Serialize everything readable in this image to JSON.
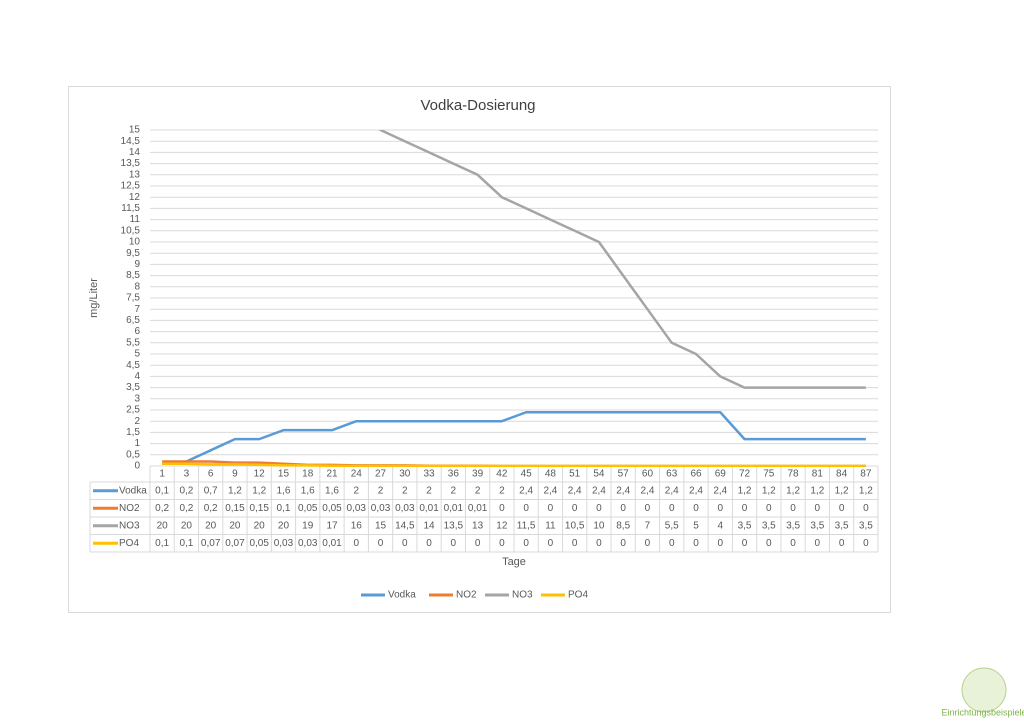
{
  "chart_data": {
    "type": "line",
    "title": "Vodka-Dosierung",
    "y_label": "mg/Liter",
    "x_label": "Tage",
    "categories": [
      "1",
      "3",
      "6",
      "9",
      "12",
      "15",
      "18",
      "21",
      "24",
      "27",
      "30",
      "33",
      "36",
      "39",
      "42",
      "45",
      "48",
      "51",
      "54",
      "57",
      "60",
      "63",
      "66",
      "69",
      "72",
      "75",
      "78",
      "81",
      "84",
      "87"
    ],
    "ylim": [
      0,
      15
    ],
    "yticks": [
      0,
      {
        "value": 0.5,
        "label": "0,5"
      },
      1,
      {
        "value": 1.5,
        "label": "1,5"
      },
      2,
      {
        "value": 2.5,
        "label": "2,5"
      },
      3,
      {
        "value": 3.5,
        "label": "3,5"
      },
      4,
      {
        "value": 4.5,
        "label": "4,5"
      },
      5,
      {
        "value": 5.5,
        "label": "5,5"
      },
      6,
      {
        "value": 6.5,
        "label": "6,5"
      },
      7,
      {
        "value": 7.5,
        "label": "7,5"
      },
      8,
      {
        "value": 8.5,
        "label": "8,5"
      },
      9,
      {
        "value": 9.5,
        "label": "9,5"
      },
      10,
      {
        "value": 10.5,
        "label": "10,5"
      },
      11,
      {
        "value": 11.5,
        "label": "11,5"
      },
      12,
      {
        "value": 12.5,
        "label": "12,5"
      },
      13,
      {
        "value": 13.5,
        "label": "13,5"
      },
      14,
      {
        "value": 14.5,
        "label": "14,5"
      },
      15
    ],
    "grid": true,
    "legend": "bottom",
    "series": [
      {
        "name": "Vodka",
        "color": "#5b9bd5",
        "values": [
          0.1,
          0.2,
          0.7,
          1.2,
          1.2,
          1.6,
          1.6,
          1.6,
          2,
          2,
          2,
          2,
          2,
          2,
          2,
          2.4,
          2.4,
          2.4,
          2.4,
          2.4,
          2.4,
          2.4,
          2.4,
          2.4,
          1.2,
          1.2,
          1.2,
          1.2,
          1.2,
          1.2
        ],
        "value_labels": [
          "0,1",
          "0,2",
          "0,7",
          "1,2",
          "1,2",
          "1,6",
          "1,6",
          "1,6",
          "2",
          "2",
          "2",
          "2",
          "2",
          "2",
          "2",
          "2,4",
          "2,4",
          "2,4",
          "2,4",
          "2,4",
          "2,4",
          "2,4",
          "2,4",
          "2,4",
          "1,2",
          "1,2",
          "1,2",
          "1,2",
          "1,2",
          "1,2"
        ]
      },
      {
        "name": "NO2",
        "color": "#ed7d31",
        "values": [
          0.2,
          0.2,
          0.2,
          0.15,
          0.15,
          0.1,
          0.05,
          0.05,
          0.03,
          0.03,
          0.03,
          0.01,
          0.01,
          0.01,
          0,
          0,
          0,
          0,
          0,
          0,
          0,
          0,
          0,
          0,
          0,
          0,
          0,
          0,
          0,
          0
        ],
        "value_labels": [
          "0,2",
          "0,2",
          "0,2",
          "0,15",
          "0,15",
          "0,1",
          "0,05",
          "0,05",
          "0,03",
          "0,03",
          "0,03",
          "0,01",
          "0,01",
          "0,01",
          "0",
          "0",
          "0",
          "0",
          "0",
          "0",
          "0",
          "0",
          "0",
          "0",
          "0",
          "0",
          "0",
          "0",
          "0",
          "0"
        ]
      },
      {
        "name": "NO3",
        "color": "#a5a5a5",
        "values": [
          20,
          20,
          20,
          20,
          20,
          20,
          19,
          17,
          16,
          15,
          14.5,
          14,
          13.5,
          13,
          12,
          11.5,
          11,
          10.5,
          10,
          8.5,
          7,
          5.5,
          5,
          4,
          3.5,
          3.5,
          3.5,
          3.5,
          3.5,
          3.5
        ],
        "value_labels": [
          "20",
          "20",
          "20",
          "20",
          "20",
          "20",
          "19",
          "17",
          "16",
          "15",
          "14,5",
          "14",
          "13,5",
          "13",
          "12",
          "11,5",
          "11",
          "10,5",
          "10",
          "8,5",
          "7",
          "5,5",
          "5",
          "4",
          "3,5",
          "3,5",
          "3,5",
          "3,5",
          "3,5",
          "3,5"
        ]
      },
      {
        "name": "PO4",
        "color": "#ffc000",
        "values": [
          0.1,
          0.1,
          0.07,
          0.07,
          0.05,
          0.03,
          0.03,
          0.01,
          0,
          0,
          0,
          0,
          0,
          0,
          0,
          0,
          0,
          0,
          0,
          0,
          0,
          0,
          0,
          0,
          0,
          0,
          0,
          0,
          0,
          0
        ],
        "value_labels": [
          "0,1",
          "0,1",
          "0,07",
          "0,07",
          "0,05",
          "0,03",
          "0,03",
          "0,01",
          "0",
          "0",
          "0",
          "0",
          "0",
          "0",
          "0",
          "0",
          "0",
          "0",
          "0",
          "0",
          "0",
          "0",
          "0",
          "0",
          "0",
          "0",
          "0",
          "0",
          "0",
          "0"
        ]
      }
    ]
  },
  "watermark": "Einrichtungsbeispiele"
}
